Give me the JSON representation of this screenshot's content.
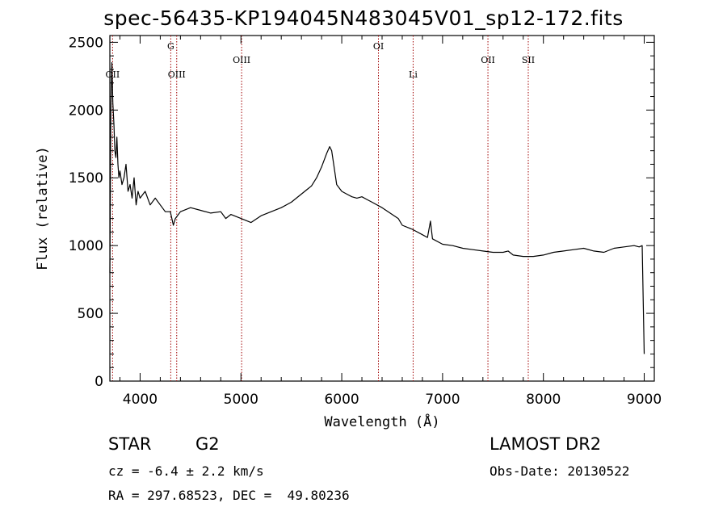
{
  "title": "spec-56435-KP194045N483045V01_sp12-172.fits",
  "info": {
    "class": "STAR",
    "subclass": "G2",
    "survey": "LAMOST DR2",
    "cz": "cz = -6.4 ± 2.2 km/s",
    "obs_date": "Obs-Date: 20130522",
    "radec": "RA = 297.68523, DEC =  49.80236"
  },
  "chart_data": {
    "type": "line",
    "title": "spec-56435-KP194045N483045V01_sp12-172.fits",
    "xlabel": "Wavelength (Å)",
    "ylabel": "Flux (relative)",
    "xlim": [
      3700,
      9100
    ],
    "ylim": [
      0,
      2550
    ],
    "xticks": [
      4000,
      5000,
      6000,
      7000,
      8000,
      9000
    ],
    "yticks": [
      0,
      500,
      1000,
      1500,
      2000,
      2500
    ],
    "lines": [
      {
        "label": "OII",
        "x": 3727,
        "tier": "low"
      },
      {
        "label": "G",
        "x": 4304,
        "tier": "high"
      },
      {
        "label": "OIII",
        "x": 4363,
        "tier": "low"
      },
      {
        "label": "OIII",
        "x": 5007,
        "tier": "mid"
      },
      {
        "label": "OI",
        "x": 6364,
        "tier": "high"
      },
      {
        "label": "Li",
        "x": 6708,
        "tier": "low"
      },
      {
        "label": "OII",
        "x": 7450,
        "tier": "mid"
      },
      {
        "label": "SII",
        "x": 7850,
        "tier": "mid"
      }
    ],
    "series": [
      {
        "x": [
          3700,
          3710,
          3720,
          3730,
          3740,
          3750,
          3760,
          3770,
          3780,
          3790,
          3800,
          3820,
          3840,
          3860,
          3880,
          3900,
          3920,
          3940,
          3960,
          3980,
          4000,
          4050,
          4100,
          4150,
          4200,
          4250,
          4300,
          4330,
          4350,
          4400,
          4500,
          4600,
          4700,
          4800,
          4850,
          4900,
          5000,
          5100,
          5200,
          5300,
          5400,
          5500,
          5600,
          5700,
          5750,
          5800,
          5850,
          5880,
          5900,
          5920,
          5950,
          6000,
          6050,
          6100,
          6150,
          6200,
          6250,
          6300,
          6400,
          6500,
          6560,
          6600,
          6700,
          6800,
          6850,
          6880,
          6900,
          7000,
          7100,
          7200,
          7300,
          7400,
          7500,
          7600,
          7650,
          7700,
          7800,
          7900,
          8000,
          8100,
          8200,
          8300,
          8400,
          8500,
          8600,
          8700,
          8800,
          8900,
          8950,
          8980,
          9000
        ],
        "y": [
          800,
          2000,
          2350,
          2050,
          1900,
          1700,
          1650,
          1800,
          1600,
          1500,
          1550,
          1450,
          1500,
          1600,
          1400,
          1450,
          1350,
          1500,
          1300,
          1400,
          1350,
          1400,
          1300,
          1350,
          1300,
          1250,
          1250,
          1150,
          1200,
          1250,
          1280,
          1260,
          1240,
          1250,
          1200,
          1230,
          1200,
          1170,
          1220,
          1250,
          1280,
          1320,
          1380,
          1440,
          1500,
          1580,
          1680,
          1730,
          1700,
          1600,
          1450,
          1400,
          1380,
          1360,
          1350,
          1360,
          1340,
          1320,
          1280,
          1230,
          1200,
          1150,
          1120,
          1080,
          1060,
          1180,
          1050,
          1010,
          1000,
          980,
          970,
          960,
          950,
          950,
          960,
          930,
          920,
          920,
          930,
          950,
          960,
          970,
          980,
          960,
          950,
          980,
          990,
          1000,
          990,
          1000,
          200
        ]
      }
    ],
    "grid": false
  }
}
